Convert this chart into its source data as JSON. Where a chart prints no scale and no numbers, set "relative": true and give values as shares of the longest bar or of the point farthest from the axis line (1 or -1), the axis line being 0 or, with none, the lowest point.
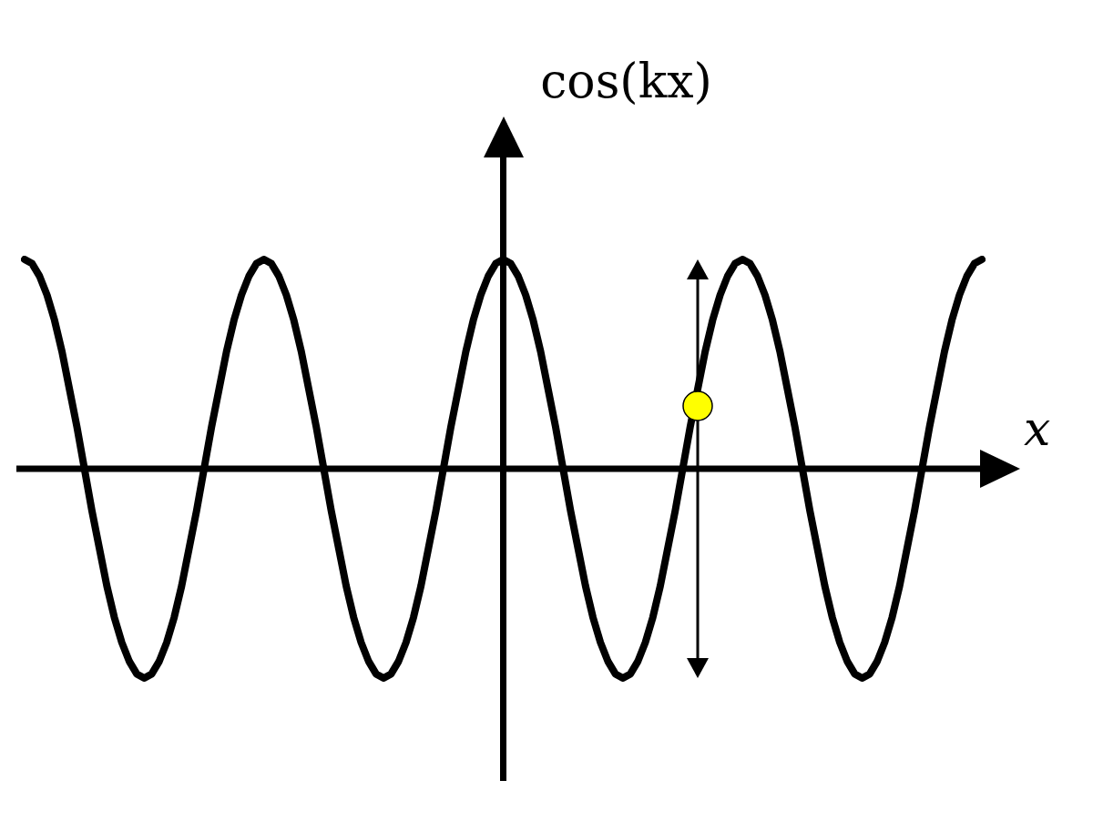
{
  "chart_data": {
    "type": "line",
    "xlabel": "x",
    "ylabel": "cos(kx)",
    "relative": true,
    "categories": [
      null,
      null,
      null,
      null,
      null,
      null,
      null,
      null,
      null,
      null,
      null,
      null,
      null,
      null,
      null,
      null,
      null,
      null,
      null,
      null,
      null,
      null,
      null,
      null,
      null,
      null,
      null,
      null,
      null,
      null,
      null,
      null,
      null,
      null,
      null,
      null,
      null,
      null,
      null,
      null,
      null,
      null,
      null,
      null,
      null,
      null,
      null,
      null,
      null,
      null,
      null,
      null,
      null,
      null,
      null,
      null,
      null,
      null,
      null,
      null,
      null,
      null,
      null,
      null,
      null,
      null,
      null,
      null,
      null,
      null,
      null,
      null,
      null,
      null,
      null,
      null,
      null,
      null,
      null,
      null,
      null,
      null,
      null,
      null,
      null,
      null,
      null,
      null,
      null,
      null,
      null,
      null,
      null,
      null,
      null,
      null,
      null,
      null,
      null,
      null,
      null,
      null,
      null,
      null,
      null,
      null,
      null,
      null,
      null,
      null,
      null,
      null,
      null,
      null,
      null,
      null,
      null,
      null,
      null,
      null,
      null,
      null,
      null,
      null,
      null,
      null,
      null,
      null,
      null
    ],
    "series": [
      {
        "color": "#000000",
        "values": [
          1,
          0.98,
          0.92,
          0.83,
          0.71,
          0.56,
          0.38,
          0.2,
          0,
          -0.2,
          -0.38,
          -0.56,
          -0.71,
          -0.83,
          -0.92,
          -0.98,
          -1,
          -0.98,
          -0.92,
          -0.83,
          -0.71,
          -0.56,
          -0.38,
          -0.2,
          0,
          0.2,
          0.38,
          0.56,
          0.71,
          0.83,
          0.92,
          0.98,
          1,
          0.98,
          0.92,
          0.83,
          0.71,
          0.56,
          0.38,
          0.2,
          0,
          -0.2,
          -0.38,
          -0.56,
          -0.71,
          -0.83,
          -0.92,
          -0.98,
          -1,
          -0.98,
          -0.92,
          -0.83,
          -0.71,
          -0.56,
          -0.38,
          -0.2,
          0,
          0.2,
          0.38,
          0.56,
          0.71,
          0.83,
          0.92,
          0.98,
          1,
          0.98,
          0.92,
          0.83,
          0.71,
          0.56,
          0.38,
          0.2,
          0,
          -0.2,
          -0.38,
          -0.56,
          -0.71,
          -0.83,
          -0.92,
          -0.98,
          -1,
          -0.98,
          -0.92,
          -0.83,
          -0.71,
          -0.56,
          -0.38,
          -0.2,
          0,
          0.2,
          0.38,
          0.56,
          0.71,
          0.83,
          0.92,
          0.98,
          1,
          0.98,
          0.92,
          0.83,
          0.71,
          0.56,
          0.38,
          0.2,
          0,
          -0.2,
          -0.38,
          -0.56,
          -0.71,
          -0.83,
          -0.92,
          -0.98,
          -1,
          -0.98,
          -0.92,
          -0.83,
          -0.71,
          -0.56,
          -0.38,
          -0.2,
          0,
          0.2,
          0.38,
          0.56,
          0.71,
          0.83,
          0.92,
          0.98,
          1
        ]
      }
    ]
  }
}
